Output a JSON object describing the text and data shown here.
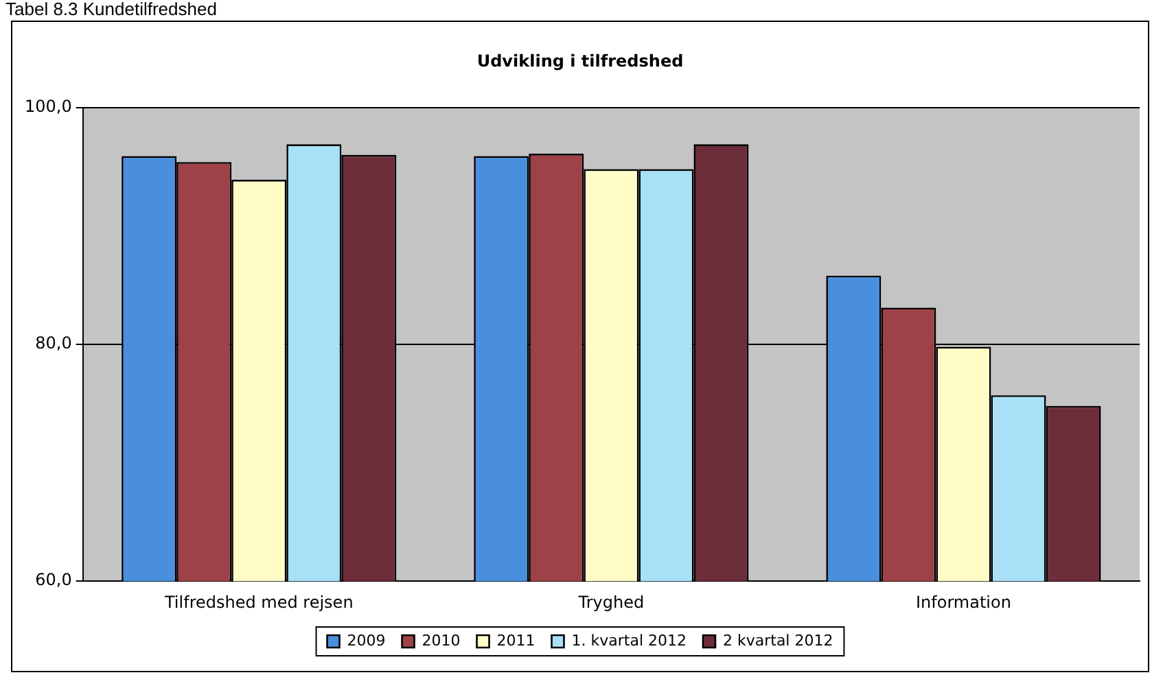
{
  "chart_data": {
    "type": "bar",
    "title": "Udvikling i tilfredshed",
    "annotations": [
      "Tabel 8.3 Kundetilfredshed"
    ],
    "categories": [
      "Tilfredshed med rejsen",
      "Tryghed",
      "Information"
    ],
    "series": [
      {
        "name": "2009",
        "color": "#4a8fde",
        "values": [
          95.9,
          95.9,
          85.8
        ]
      },
      {
        "name": "2010",
        "color": "#9e4149",
        "values": [
          95.4,
          96.1,
          83.1
        ]
      },
      {
        "name": "2011",
        "color": "#fffcc8",
        "values": [
          93.9,
          94.8,
          79.8
        ]
      },
      {
        "name": "1. kvartal 2012",
        "color": "#a8e0f8",
        "values": [
          96.9,
          94.8,
          75.7
        ]
      },
      {
        "name": "2 kvartal 2012",
        "color": "#6e2d3a",
        "values": [
          96,
          96.9,
          74.8
        ]
      }
    ],
    "ylim": [
      60,
      100
    ],
    "yticks": [
      {
        "value": 60,
        "label": "60,0"
      },
      {
        "value": 80,
        "label": "80,0"
      },
      {
        "value": 100,
        "label": "100,0"
      }
    ],
    "grid": "y",
    "legend": "bottom"
  }
}
